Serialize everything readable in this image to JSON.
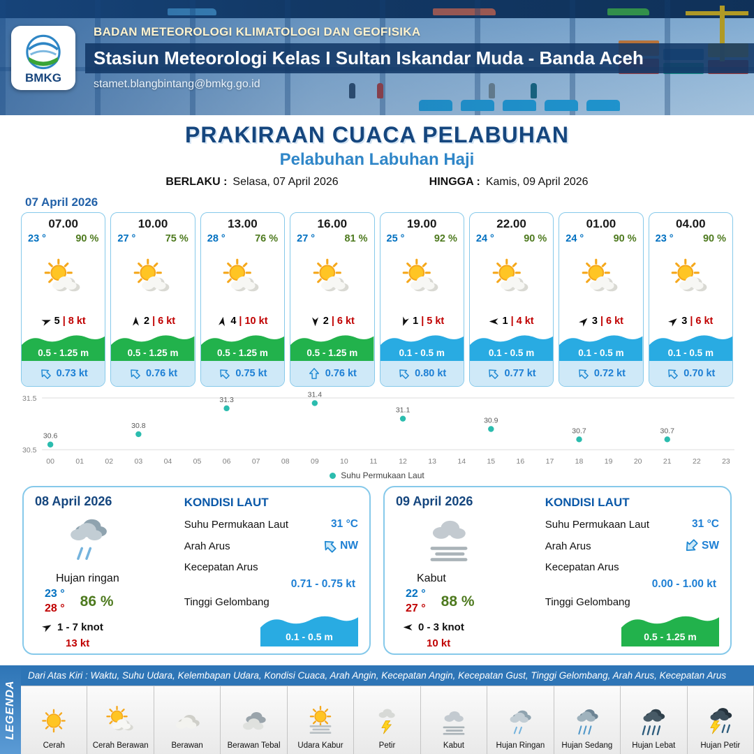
{
  "header": {
    "agency": "BADAN METEOROLOGI KLIMATOLOGI DAN GEOFISIKA",
    "station": "Stasiun Meteorologi Kelas I Sultan Iskandar Muda - Banda Aceh",
    "email": "stamet.blangbintang@bmkg.go.id",
    "logo_text": "BMKG"
  },
  "title": {
    "main": "PRAKIRAAN CUACA PELABUHAN",
    "sub": "Pelabuhan Labuhan Haji",
    "berlaku_label": "BERLAKU :",
    "berlaku_value": "Selasa, 07 April 2026",
    "hingga_label": "HINGGA :",
    "hingga_value": "Kamis, 09 April 2026"
  },
  "forecast_date": "07 April 2026",
  "card_icon": "cerah-berawan",
  "cards": [
    {
      "time": "07.00",
      "temp": "23 °",
      "rh": "90 %",
      "wind_rot": 70,
      "wind_val": "5",
      "gust": "8 kt",
      "wave": "0.5 - 1.25 m",
      "wave_color": "green",
      "current_rot": 315,
      "current": "0.73 kt"
    },
    {
      "time": "10.00",
      "temp": "27 °",
      "rh": "75 %",
      "wind_rot": 0,
      "wind_val": "2",
      "gust": "6 kt",
      "wave": "0.5 - 1.25 m",
      "wave_color": "green",
      "current_rot": 315,
      "current": "0.76 kt"
    },
    {
      "time": "13.00",
      "temp": "28 °",
      "rh": "76 %",
      "wind_rot": 10,
      "wind_val": "4",
      "gust": "10 kt",
      "wave": "0.5 - 1.25 m",
      "wave_color": "green",
      "current_rot": 315,
      "current": "0.75 kt"
    },
    {
      "time": "16.00",
      "temp": "27 °",
      "rh": "81 %",
      "wind_rot": 180,
      "wind_val": "2",
      "gust": "6 kt",
      "wave": "0.5 - 1.25 m",
      "wave_color": "green",
      "current_rot": 0,
      "current": "0.76 kt"
    },
    {
      "time": "19.00",
      "temp": "25 °",
      "rh": "92 %",
      "wind_rot": 200,
      "wind_val": "1",
      "gust": "5 kt",
      "wave": "0.1 - 0.5 m",
      "wave_color": "blue",
      "current_rot": 315,
      "current": "0.80 kt"
    },
    {
      "time": "22.00",
      "temp": "24 °",
      "rh": "90 %",
      "wind_rot": 270,
      "wind_val": "1",
      "gust": "4 kt",
      "wave": "0.1 - 0.5 m",
      "wave_color": "blue",
      "current_rot": 315,
      "current": "0.77 kt"
    },
    {
      "time": "01.00",
      "temp": "24 °",
      "rh": "90 %",
      "wind_rot": 45,
      "wind_val": "3",
      "gust": "6 kt",
      "wave": "0.1 - 0.5 m",
      "wave_color": "blue",
      "current_rot": 315,
      "current": "0.72 kt"
    },
    {
      "time": "04.00",
      "temp": "23 °",
      "rh": "90 %",
      "wind_rot": 50,
      "wind_val": "3",
      "gust": "6 kt",
      "wave": "0.1 - 0.5 m",
      "wave_color": "blue",
      "current_rot": 315,
      "current": "0.70 kt"
    }
  ],
  "chart_data": {
    "type": "scatter",
    "series_name": "Suhu Permukaan Laut",
    "x": [
      0,
      3,
      6,
      9,
      12,
      15,
      18,
      21
    ],
    "values": [
      30.6,
      30.8,
      31.3,
      31.4,
      31.1,
      30.9,
      30.7,
      30.7
    ],
    "x_ticks": [
      "00",
      "01",
      "02",
      "03",
      "04",
      "05",
      "06",
      "07",
      "08",
      "09",
      "10",
      "11",
      "12",
      "13",
      "14",
      "15",
      "16",
      "17",
      "18",
      "19",
      "20",
      "21",
      "22",
      "23"
    ],
    "ylim": [
      30.5,
      31.5
    ],
    "y_ticks": [
      "30.5",
      "31.5"
    ],
    "point_color": "#2bbcae",
    "legend_position": "bottom",
    "grid": true
  },
  "sea_labels": {
    "title": "KONDISI LAUT",
    "sst": "Suhu Permukaan Laut",
    "current_dir": "Arah Arus",
    "current_speed": "Kecepatan Arus",
    "wave": "Tinggi Gelombang"
  },
  "daily": [
    {
      "date": "08 April 2026",
      "icon": "hujan-ringan",
      "condition": "Hujan ringan",
      "temp_min": "23 °",
      "temp_max": "28 °",
      "rh": "86 %",
      "wind_rot": 60,
      "wind_range": "1 - 7 knot",
      "gust": "13 kt",
      "sst": "31 °C",
      "current_dir": "NW",
      "current_rot": 315,
      "current_speed": "0.71 - 0.75 kt",
      "wave": "0.1 - 0.5 m",
      "wave_color": "blue"
    },
    {
      "date": "09 April 2026",
      "icon": "kabut",
      "condition": "Kabut",
      "temp_min": "22 °",
      "temp_max": "27 °",
      "rh": "88 %",
      "wind_rot": 270,
      "wind_range": "0 - 3 knot",
      "gust": "10 kt",
      "sst": "31 °C",
      "current_dir": "SW",
      "current_rot": 225,
      "current_speed": "0.00 - 1.00 kt",
      "wave": "0.5 - 1.25 m",
      "wave_color": "green"
    }
  ],
  "legend": {
    "vertical_label": "LEGENDA",
    "strip_text": "Dari Atas Kiri : Waktu, Suhu Udara, Kelembapan Udara, Kondisi Cuaca, Arah Angin, Kecepatan Angin, Kecepatan Gust, Tinggi Gelombang, Arah Arus, Kecepatan Arus",
    "items": [
      {
        "icon": "cerah",
        "label": "Cerah"
      },
      {
        "icon": "cerah-berawan",
        "label": "Cerah Berawan"
      },
      {
        "icon": "berawan",
        "label": "Berawan"
      },
      {
        "icon": "berawan-tebal",
        "label": "Berawan Tebal"
      },
      {
        "icon": "udara-kabur",
        "label": "Udara Kabur"
      },
      {
        "icon": "petir",
        "label": "Petir"
      },
      {
        "icon": "kabut",
        "label": "Kabut"
      },
      {
        "icon": "hujan-ringan",
        "label": "Hujan Ringan"
      },
      {
        "icon": "hujan-sedang",
        "label": "Hujan Sedang"
      },
      {
        "icon": "hujan-lebat",
        "label": "Hujan Lebat"
      },
      {
        "icon": "hujan-petir",
        "label": "Hujan Petir"
      }
    ]
  },
  "colors": {
    "header_blue": "#1a4d8a",
    "title_blue": "#15467e",
    "subtitle_blue": "#2f86c8",
    "temp_blue": "#0070c0",
    "humidity_green": "#4e7a1f",
    "gust_red": "#c00000",
    "wave_green": "#22b24c",
    "wave_blue": "#29abe2",
    "current_blue": "#1d7fd4",
    "sst_point_teal": "#2bbcae",
    "legend_strip_blue": "#2e75b6"
  }
}
